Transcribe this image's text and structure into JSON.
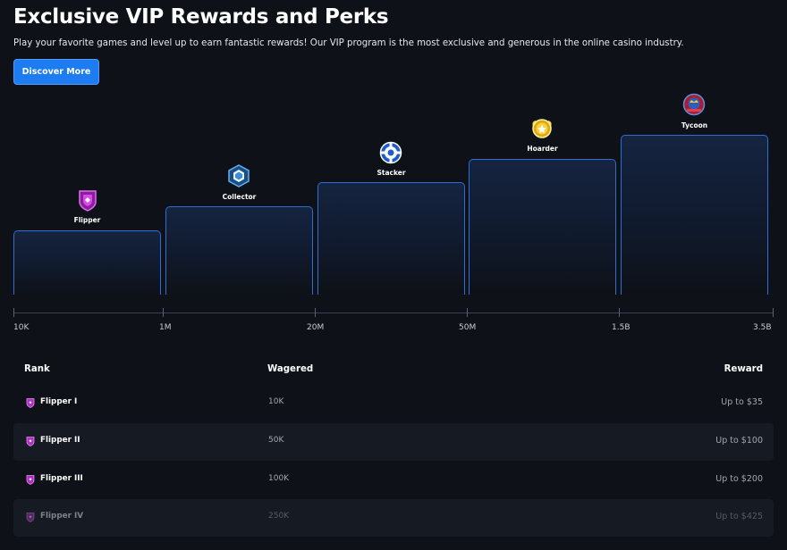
{
  "header": {
    "title": "Exclusive VIP Rewards and Perks",
    "subtitle": "Play your favorite games and level up to earn fantastic rewards! Our VIP program is the most exclusive and generous in the online casino industry.",
    "cta_label": "Discover More"
  },
  "tiers": [
    {
      "name": "Flipper",
      "icon": "flipper-badge-icon",
      "color": "#c23bd4"
    },
    {
      "name": "Collector",
      "icon": "collector-badge-icon",
      "color": "#2c7fd0"
    },
    {
      "name": "Stacker",
      "icon": "stacker-badge-icon",
      "color": "#1e5cc8"
    },
    {
      "name": "Hoarder",
      "icon": "hoarder-badge-icon",
      "color": "#e0b020"
    },
    {
      "name": "Tycoon",
      "icon": "tycoon-badge-icon",
      "color": "#c8283a"
    }
  ],
  "axis": {
    "ticks": [
      "10K",
      "1M",
      "20M",
      "50M",
      "1.5B",
      "3.5B"
    ]
  },
  "table": {
    "headers": {
      "rank": "Rank",
      "wagered": "Wagered",
      "reward": "Reward"
    },
    "rows": [
      {
        "rank": "Flipper I",
        "wagered": "10K",
        "reward": "Up to $35"
      },
      {
        "rank": "Flipper II",
        "wagered": "50K",
        "reward": "Up to $100"
      },
      {
        "rank": "Flipper III",
        "wagered": "100K",
        "reward": "Up to $200"
      },
      {
        "rank": "Flipper IV",
        "wagered": "250K",
        "reward": "Up to $425"
      }
    ]
  },
  "colors": {
    "background": "#0e1117",
    "accent": "#1e7cf2",
    "tier_border": "#2a6fd6",
    "row_shade": "#161a22",
    "muted_text": "#a2a7b2"
  }
}
